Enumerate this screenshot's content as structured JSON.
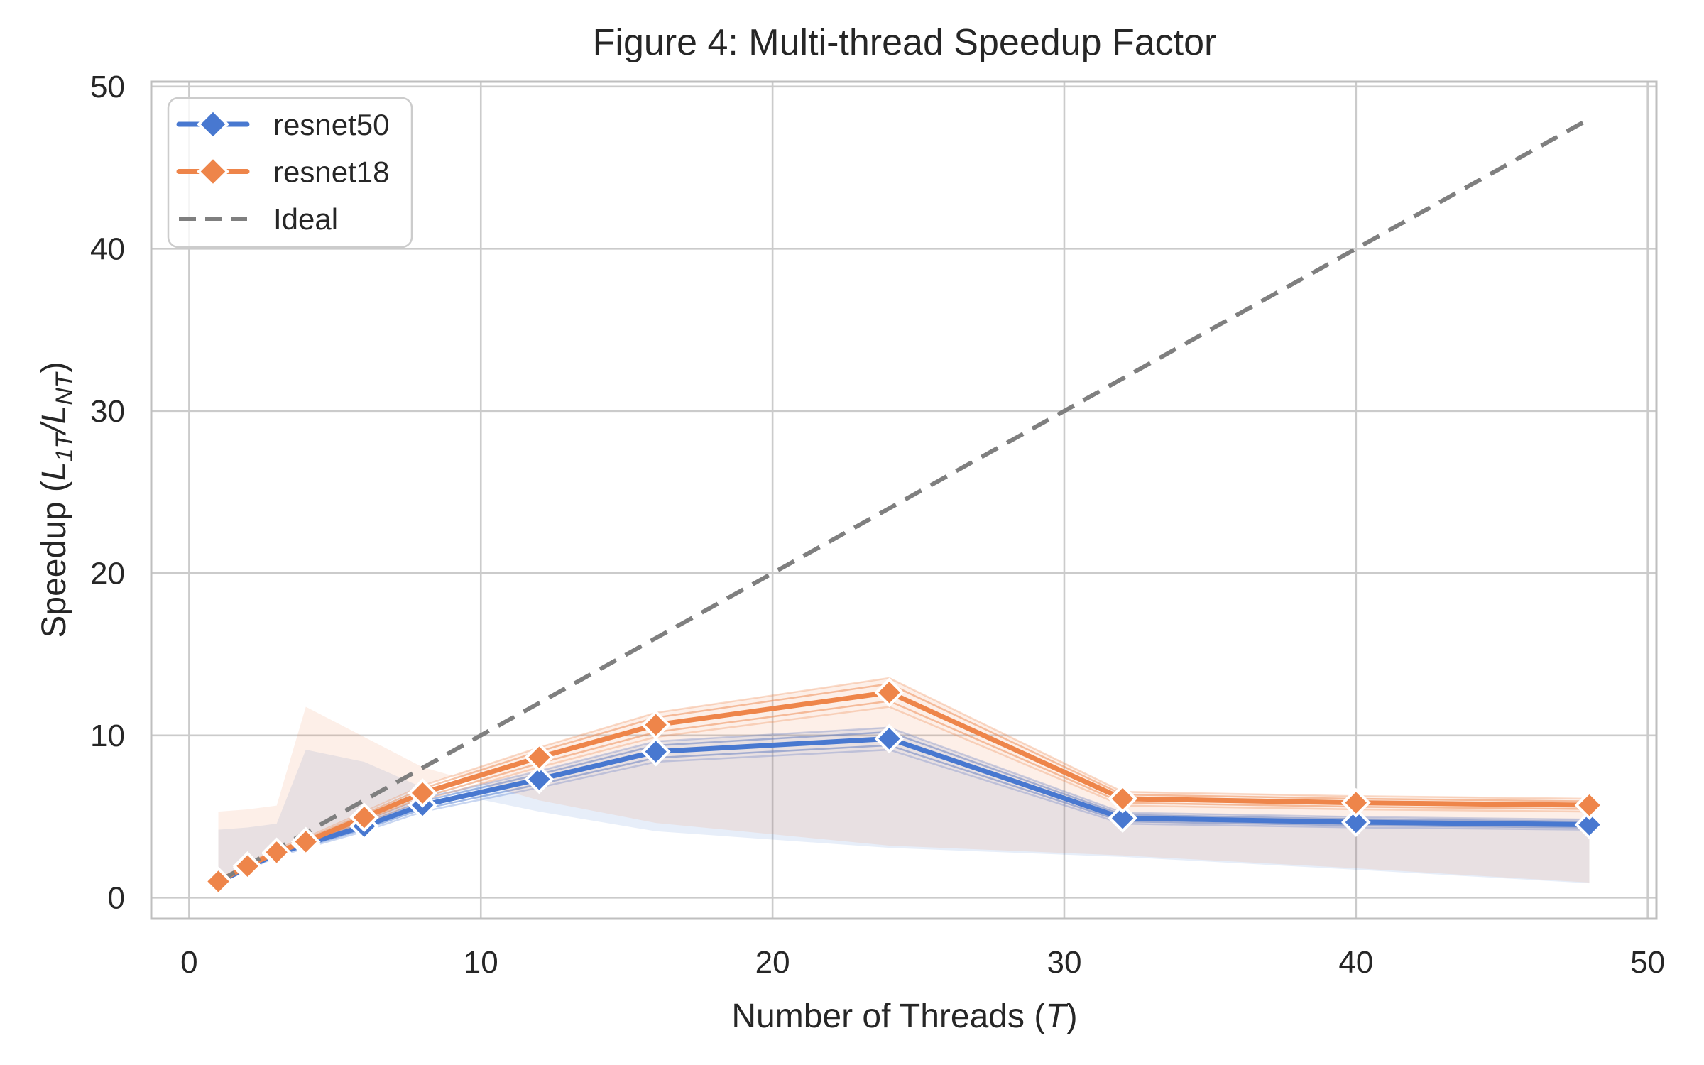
{
  "figure": {
    "title": "Figure 4: Multi-thread Speedup Factor",
    "xlabel": {
      "pre": "Number of Threads (",
      "var": "T",
      "post": ")"
    },
    "ylabel": {
      "pre": "Speedup (",
      "var1": "L",
      "sub1": "1T",
      "mid": "/",
      "var2": "L",
      "sub2": "NT",
      "post": ")"
    }
  },
  "chart_data": {
    "type": "line",
    "title": "Figure 4: Multi-thread Speedup Factor",
    "xlabel": "Number of Threads (T)",
    "ylabel": "Speedup (L_1T / L_NT)",
    "x": [
      1,
      2,
      3,
      4,
      6,
      8,
      12,
      16,
      24,
      32,
      40,
      48
    ],
    "series": [
      {
        "name": "resnet50",
        "color": "#4878D0",
        "values": [
          0.95,
          1.85,
          2.7,
          3.3,
          4.4,
          5.7,
          7.3,
          9.0,
          9.8,
          4.9,
          4.65,
          4.5
        ]
      },
      {
        "name": "resnet18",
        "color": "#EE854A",
        "values": [
          1.0,
          1.95,
          2.8,
          3.45,
          4.95,
          6.45,
          8.65,
          10.65,
          12.65,
          6.1,
          5.85,
          5.7
        ]
      }
    ],
    "ideal": {
      "name": "Ideal",
      "color": "#7F7F7F",
      "x": [
        1,
        48
      ],
      "values": [
        1,
        48
      ]
    },
    "xticks": [
      0,
      10,
      20,
      30,
      40,
      50
    ],
    "yticks": [
      0,
      10,
      20,
      30,
      40,
      50
    ],
    "xlim": [
      -1.3,
      50.3
    ],
    "ylim": [
      -1.3,
      50.3
    ],
    "grid": true,
    "legend_position": "upper-left",
    "band_fraction": 0.07,
    "marker": "diamond"
  },
  "colors": {
    "background": "#ffffff",
    "grid": "#CBCBCB",
    "spine": "#BFBFBF",
    "text": "#262626",
    "legend_border": "#CCCCCC",
    "marker_edge": "#ffffff"
  }
}
